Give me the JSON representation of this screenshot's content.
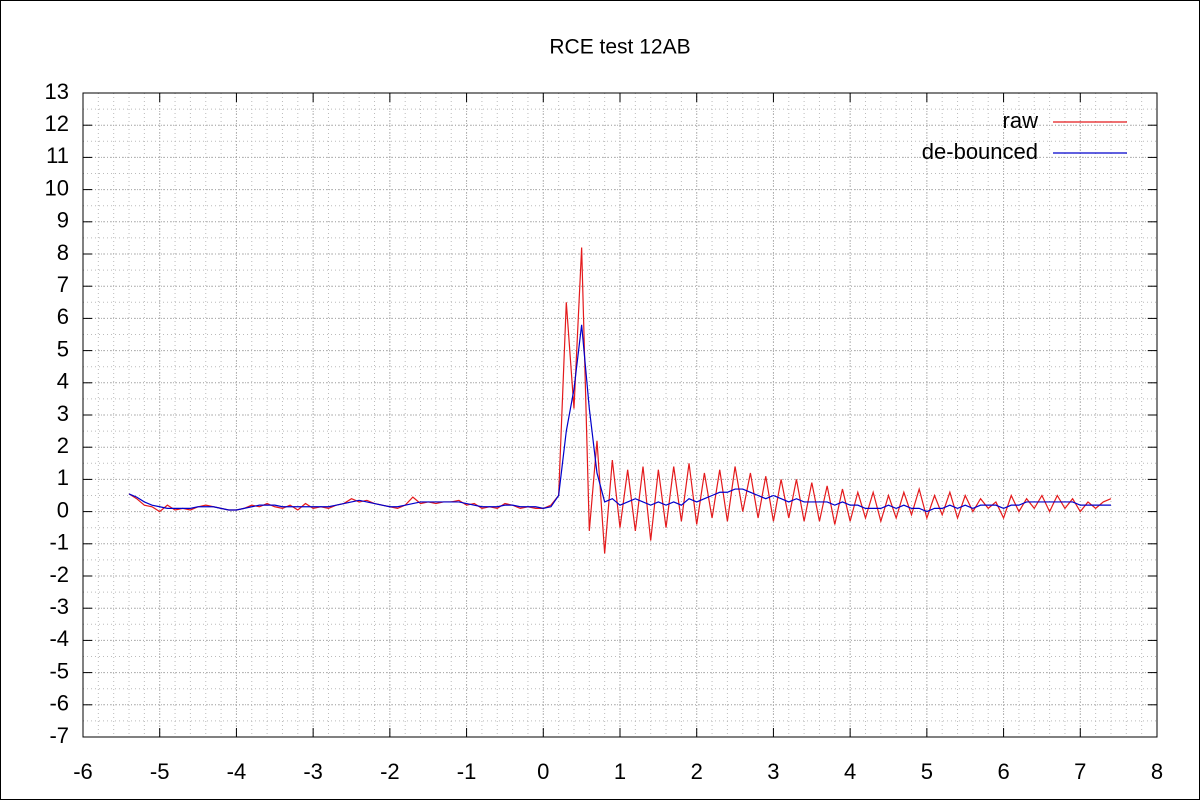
{
  "chart_data": {
    "type": "line",
    "title": "RCE test 12AB",
    "x": [
      -5.4,
      -5.3,
      -5.2,
      -5.1,
      -5.0,
      -4.9,
      -4.8,
      -4.7,
      -4.6,
      -4.5,
      -4.4,
      -4.3,
      -4.2,
      -4.1,
      -4.0,
      -3.9,
      -3.8,
      -3.7,
      -3.6,
      -3.5,
      -3.4,
      -3.3,
      -3.2,
      -3.1,
      -3.0,
      -2.9,
      -2.8,
      -2.7,
      -2.6,
      -2.5,
      -2.4,
      -2.3,
      -2.2,
      -2.1,
      -2.0,
      -1.9,
      -1.8,
      -1.7,
      -1.6,
      -1.5,
      -1.4,
      -1.3,
      -1.2,
      -1.1,
      -1.0,
      -0.9,
      -0.8,
      -0.7,
      -0.6,
      -0.5,
      -0.4,
      -0.3,
      -0.2,
      -0.1,
      0.0,
      0.1,
      0.2,
      0.3,
      0.4,
      0.5,
      0.6,
      0.7,
      0.8,
      0.9,
      1.0,
      1.1,
      1.2,
      1.3,
      1.4,
      1.5,
      1.6,
      1.7,
      1.8,
      1.9,
      2.0,
      2.1,
      2.2,
      2.3,
      2.4,
      2.5,
      2.6,
      2.7,
      2.8,
      2.9,
      3.0,
      3.1,
      3.2,
      3.3,
      3.4,
      3.5,
      3.6,
      3.7,
      3.8,
      3.9,
      4.0,
      4.1,
      4.2,
      4.3,
      4.4,
      4.5,
      4.6,
      4.7,
      4.8,
      4.9,
      5.0,
      5.1,
      5.2,
      5.3,
      5.4,
      5.5,
      5.6,
      5.7,
      5.8,
      5.9,
      6.0,
      6.1,
      6.2,
      6.3,
      6.4,
      6.5,
      6.6,
      6.7,
      6.8,
      6.9,
      7.0,
      7.1,
      7.2,
      7.3,
      7.4
    ],
    "series": [
      {
        "name": "raw",
        "color": "#e41a1c",
        "values": [
          0.55,
          0.4,
          0.2,
          0.15,
          0.0,
          0.2,
          0.05,
          0.1,
          0.05,
          0.15,
          0.2,
          0.15,
          0.1,
          0.05,
          0.05,
          0.1,
          0.2,
          0.15,
          0.25,
          0.15,
          0.1,
          0.2,
          0.05,
          0.25,
          0.1,
          0.15,
          0.1,
          0.2,
          0.25,
          0.4,
          0.3,
          0.35,
          0.25,
          0.2,
          0.15,
          0.1,
          0.2,
          0.45,
          0.25,
          0.3,
          0.25,
          0.3,
          0.3,
          0.35,
          0.2,
          0.25,
          0.1,
          0.15,
          0.1,
          0.25,
          0.2,
          0.1,
          0.15,
          0.1,
          0.1,
          0.2,
          0.5,
          6.5,
          3.2,
          8.2,
          -0.6,
          2.2,
          -1.3,
          1.6,
          -0.5,
          1.3,
          -0.6,
          1.4,
          -0.9,
          1.3,
          -0.5,
          1.4,
          -0.3,
          1.5,
          -0.4,
          1.2,
          -0.2,
          1.3,
          -0.3,
          1.4,
          0.0,
          1.2,
          -0.2,
          1.1,
          -0.3,
          1.0,
          -0.2,
          1.0,
          -0.3,
          0.9,
          -0.3,
          0.8,
          -0.4,
          0.7,
          -0.3,
          0.6,
          -0.2,
          0.6,
          -0.3,
          0.5,
          -0.2,
          0.6,
          -0.1,
          0.7,
          -0.2,
          0.5,
          -0.1,
          0.6,
          -0.2,
          0.5,
          0.0,
          0.4,
          0.1,
          0.3,
          -0.2,
          0.5,
          0.0,
          0.4,
          0.1,
          0.5,
          0.0,
          0.5,
          0.1,
          0.4,
          0.0,
          0.3,
          0.1,
          0.3,
          0.4
        ]
      },
      {
        "name": "de-bounced",
        "color": "#0000cc",
        "values": [
          0.55,
          0.45,
          0.3,
          0.2,
          0.15,
          0.1,
          0.1,
          0.1,
          0.1,
          0.15,
          0.15,
          0.15,
          0.1,
          0.05,
          0.05,
          0.1,
          0.15,
          0.2,
          0.2,
          0.2,
          0.15,
          0.15,
          0.15,
          0.15,
          0.15,
          0.15,
          0.15,
          0.2,
          0.25,
          0.3,
          0.35,
          0.3,
          0.25,
          0.2,
          0.15,
          0.15,
          0.2,
          0.25,
          0.3,
          0.3,
          0.3,
          0.3,
          0.3,
          0.3,
          0.25,
          0.2,
          0.15,
          0.15,
          0.15,
          0.2,
          0.2,
          0.15,
          0.15,
          0.15,
          0.1,
          0.15,
          0.5,
          2.5,
          3.8,
          5.8,
          3.2,
          1.2,
          0.3,
          0.4,
          0.2,
          0.3,
          0.4,
          0.3,
          0.2,
          0.3,
          0.2,
          0.3,
          0.2,
          0.4,
          0.3,
          0.4,
          0.5,
          0.6,
          0.6,
          0.7,
          0.7,
          0.6,
          0.5,
          0.4,
          0.5,
          0.4,
          0.3,
          0.4,
          0.3,
          0.3,
          0.3,
          0.3,
          0.2,
          0.3,
          0.2,
          0.2,
          0.1,
          0.1,
          0.1,
          0.2,
          0.1,
          0.2,
          0.1,
          0.1,
          0.0,
          0.1,
          0.1,
          0.2,
          0.1,
          0.2,
          0.1,
          0.2,
          0.2,
          0.2,
          0.1,
          0.2,
          0.2,
          0.3,
          0.3,
          0.3,
          0.3,
          0.3,
          0.3,
          0.3,
          0.2,
          0.2,
          0.2,
          0.2,
          0.2
        ]
      }
    ],
    "xlim": [
      -6,
      8
    ],
    "xticks": [
      -6,
      -5,
      -4,
      -3,
      -2,
      -1,
      0,
      1,
      2,
      3,
      4,
      5,
      6,
      7,
      8
    ],
    "ylim": [
      -7,
      13
    ],
    "yticks": [
      -7,
      -6,
      -5,
      -4,
      -3,
      -2,
      -1,
      0,
      1,
      2,
      3,
      4,
      5,
      6,
      7,
      8,
      9,
      10,
      11,
      12,
      13
    ],
    "grid": true,
    "legend": "upper-right"
  }
}
